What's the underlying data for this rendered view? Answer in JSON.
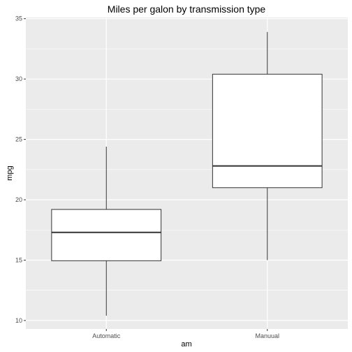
{
  "chart_data": {
    "type": "boxplot",
    "title": "Miles per galon by transmission type",
    "xlabel": "am",
    "ylabel": "mpg",
    "ylim": [
      9.3,
      35.1
    ],
    "yticks": [
      10,
      15,
      20,
      25,
      30,
      35
    ],
    "categories": [
      "Automatic",
      "Manuual"
    ],
    "boxes": [
      {
        "category": "Automatic",
        "min": 10.4,
        "q1": 14.95,
        "median": 17.3,
        "q3": 19.2,
        "max": 24.4
      },
      {
        "category": "Manuual",
        "min": 15.0,
        "q1": 21.0,
        "median": 22.8,
        "q3": 30.4,
        "max": 33.9
      }
    ],
    "grid": true,
    "colors": {
      "panel": "#ebebeb",
      "grid": "#ffffff",
      "box_fill": "#ffffff",
      "box_stroke": "#333333"
    }
  }
}
